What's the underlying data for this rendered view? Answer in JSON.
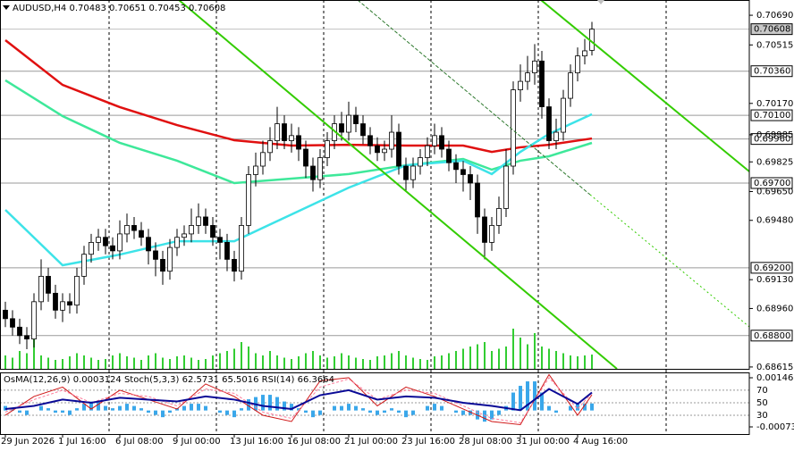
{
  "chart_data": [
    {
      "type": "candlestick",
      "title": "AUDUSD,H4 0.70483 0.70651 0.70453 0.70608",
      "categories": [
        "29 Jun 2026",
        null,
        null,
        null,
        null,
        null,
        null,
        null,
        "1 Jul 16:00",
        null,
        null,
        null,
        null,
        null,
        null,
        null,
        "6 Jul 08:00",
        null,
        null,
        null,
        null,
        null,
        null,
        null,
        "9 Jul 00:00",
        null,
        null,
        null,
        null,
        null,
        null,
        null,
        "13 Jul 16:00",
        null,
        null,
        null,
        null,
        null,
        null,
        null,
        "16 Jul 08:00",
        null,
        null,
        null,
        null,
        null,
        null,
        null,
        "21 Jul 00:00",
        null,
        null,
        null,
        null,
        null,
        null,
        null,
        "23 Jul 16:00",
        null,
        null,
        null,
        null,
        null,
        null,
        null,
        "28 Jul 08:00",
        null,
        null,
        null,
        null,
        null,
        null,
        null,
        "31 Jul 00:00",
        null,
        null,
        null,
        null,
        null,
        null,
        null,
        "4 Aug 16:00",
        null,
        null
      ],
      "open": [
        0.6895,
        0.689,
        0.6885,
        0.688,
        0.6878,
        0.69,
        0.6915,
        0.6905,
        0.6895,
        0.69,
        0.6898,
        0.6915,
        0.6928,
        0.6935,
        0.6938,
        0.6933,
        0.693,
        0.694,
        0.6945,
        0.6942,
        0.6938,
        0.693,
        0.6925,
        0.6918,
        0.6932,
        0.6938,
        0.694,
        0.6945,
        0.695,
        0.6945,
        0.6938,
        0.6935,
        0.6925,
        0.6918,
        0.6945,
        0.6975,
        0.698,
        0.6988,
        0.6995,
        0.7005,
        0.6995,
        0.6998,
        0.699,
        0.698,
        0.6972,
        0.6985,
        0.6995,
        0.7005,
        0.7,
        0.701,
        0.7005,
        0.6998,
        0.6992,
        0.6988,
        0.699,
        0.7,
        0.698,
        0.6972,
        0.698,
        0.6985,
        0.6992,
        0.6998,
        0.699,
        0.6982,
        0.6978,
        0.6975,
        0.697,
        0.695,
        0.6935,
        0.6945,
        0.6955,
        0.698,
        0.7025,
        0.703,
        0.7035,
        0.7042,
        0.7015,
        0.6995,
        0.7,
        0.702,
        0.7035,
        0.7045,
        0.70483
      ],
      "high": [
        0.69,
        0.6895,
        0.689,
        0.6885,
        0.6905,
        0.6925,
        0.692,
        0.691,
        0.6905,
        0.6905,
        0.692,
        0.6933,
        0.694,
        0.6943,
        0.6943,
        0.6938,
        0.6948,
        0.6952,
        0.695,
        0.6947,
        0.6943,
        0.6935,
        0.693,
        0.6937,
        0.6943,
        0.6945,
        0.6955,
        0.6958,
        0.6955,
        0.695,
        0.6943,
        0.694,
        0.693,
        0.695,
        0.698,
        0.6988,
        0.6995,
        0.7003,
        0.7015,
        0.701,
        0.7005,
        0.7003,
        0.6995,
        0.6985,
        0.699,
        0.7,
        0.701,
        0.7012,
        0.7018,
        0.7015,
        0.701,
        0.7003,
        0.6997,
        0.6995,
        0.701,
        0.7005,
        0.6985,
        0.6985,
        0.699,
        0.6997,
        0.7005,
        0.7003,
        0.6995,
        0.6987,
        0.6983,
        0.698,
        0.6975,
        0.6955,
        0.695,
        0.6962,
        0.699,
        0.703,
        0.704,
        0.7045,
        0.7052,
        0.7048,
        0.702,
        0.7008,
        0.7025,
        0.704,
        0.705,
        0.7055,
        0.70651
      ],
      "low": [
        0.6885,
        0.688,
        0.6875,
        0.6872,
        0.6873,
        0.6895,
        0.69,
        0.689,
        0.6888,
        0.6893,
        0.6893,
        0.691,
        0.6923,
        0.693,
        0.6928,
        0.6925,
        0.6925,
        0.6935,
        0.6937,
        0.6933,
        0.6922,
        0.6915,
        0.691,
        0.6913,
        0.6927,
        0.6933,
        0.6935,
        0.694,
        0.694,
        0.6933,
        0.6925,
        0.6918,
        0.6912,
        0.6913,
        0.694,
        0.6968,
        0.6975,
        0.6983,
        0.699,
        0.699,
        0.6988,
        0.6983,
        0.6973,
        0.6965,
        0.6967,
        0.698,
        0.699,
        0.6995,
        0.6995,
        0.7,
        0.6993,
        0.6987,
        0.6983,
        0.6983,
        0.6985,
        0.6975,
        0.6965,
        0.6967,
        0.6975,
        0.698,
        0.6987,
        0.6985,
        0.6977,
        0.697,
        0.6965,
        0.696,
        0.694,
        0.6925,
        0.693,
        0.694,
        0.695,
        0.6975,
        0.7018,
        0.7025,
        0.7028,
        0.7008,
        0.699,
        0.699,
        0.6995,
        0.7015,
        0.703,
        0.704,
        0.70453
      ],
      "close": [
        0.689,
        0.6885,
        0.688,
        0.6878,
        0.69,
        0.6915,
        0.6905,
        0.6895,
        0.69,
        0.6898,
        0.6915,
        0.6928,
        0.6935,
        0.6938,
        0.6933,
        0.693,
        0.694,
        0.6945,
        0.6942,
        0.6938,
        0.693,
        0.6925,
        0.6918,
        0.6932,
        0.6938,
        0.694,
        0.6945,
        0.695,
        0.6945,
        0.6938,
        0.6935,
        0.6925,
        0.6918,
        0.6945,
        0.6975,
        0.698,
        0.6988,
        0.6995,
        0.7005,
        0.6995,
        0.6998,
        0.699,
        0.698,
        0.6972,
        0.6985,
        0.6995,
        0.7005,
        0.7,
        0.701,
        0.7005,
        0.6998,
        0.6992,
        0.6988,
        0.699,
        0.7,
        0.698,
        0.6972,
        0.698,
        0.6985,
        0.6992,
        0.6998,
        0.699,
        0.6982,
        0.6978,
        0.6975,
        0.697,
        0.695,
        0.6935,
        0.6945,
        0.6955,
        0.698,
        0.7025,
        0.703,
        0.7035,
        0.7042,
        0.7015,
        0.6995,
        0.7,
        0.702,
        0.7035,
        0.7045,
        0.7048,
        0.70608
      ],
      "volume": [
        30,
        25,
        40,
        35,
        85,
        30,
        25,
        20,
        22,
        28,
        35,
        30,
        25,
        20,
        22,
        30,
        35,
        28,
        25,
        20,
        30,
        35,
        25,
        22,
        28,
        30,
        25,
        20,
        22,
        30,
        35,
        40,
        45,
        60,
        50,
        35,
        30,
        40,
        30,
        25,
        22,
        28,
        35,
        40,
        30,
        25,
        28,
        35,
        30,
        25,
        22,
        20,
        28,
        30,
        35,
        40,
        30,
        25,
        22,
        20,
        28,
        30,
        35,
        40,
        45,
        50,
        55,
        60,
        40,
        45,
        50,
        90,
        70,
        55,
        80,
        50,
        45,
        40,
        35,
        30,
        28,
        30,
        32
      ],
      "volume_color": "#32cd32",
      "up_color": "#ffffff",
      "down_color": "#000000",
      "ylim": [
        0.68604,
        0.7078
      ],
      "yticks": [
        {
          "value": 0.7069,
          "label": "0.70690"
        },
        {
          "value": 0.70515,
          "label": "0.70515"
        },
        {
          "value": 0.7017,
          "label": "0.70170"
        },
        {
          "value": 0.69985,
          "label": "0.69985"
        },
        {
          "value": 0.69825,
          "label": "0.69825"
        },
        {
          "value": 0.6965,
          "label": "0.69650"
        },
        {
          "value": 0.6948,
          "label": "0.69480"
        },
        {
          "value": 0.6913,
          "label": "0.69130"
        },
        {
          "value": 0.6896,
          "label": "0.68960"
        },
        {
          "value": 0.68615,
          "label": "0.68615"
        }
      ],
      "levels": [
        {
          "value": 0.7036,
          "label": "0.70360"
        },
        {
          "value": 0.701,
          "label": "0.70100"
        },
        {
          "value": 0.6996,
          "label": "0.69960"
        },
        {
          "value": 0.697,
          "label": "0.69700"
        },
        {
          "value": 0.692,
          "label": "0.69200"
        },
        {
          "value": 0.688,
          "label": "0.68800"
        }
      ],
      "level_color": "#9a9a9a",
      "last_price": {
        "value": 0.70608,
        "label": "0.70608"
      },
      "overlays": [
        {
          "color": "#e01010",
          "x": [
            0,
            8,
            16,
            24,
            32,
            40,
            48,
            56,
            64,
            68,
            72,
            76,
            82
          ],
          "values": [
            0.70543,
            0.70279,
            0.70148,
            0.70042,
            0.69953,
            0.69921,
            0.69926,
            0.69921,
            0.69921,
            0.69884,
            0.69911,
            0.69926,
            0.69963
          ]
        },
        {
          "color": "#3ee89a",
          "x": [
            0,
            8,
            16,
            24,
            32,
            40,
            48,
            56,
            64,
            68,
            72,
            76,
            82
          ],
          "values": [
            0.70306,
            0.70095,
            0.69937,
            0.69832,
            0.697,
            0.69726,
            0.69753,
            0.69805,
            0.69842,
            0.69779,
            0.69832,
            0.69858,
            0.69937
          ]
        },
        {
          "color": "#3de3e8",
          "x": [
            0,
            8,
            16,
            24,
            32,
            40,
            48,
            56,
            64,
            68,
            72,
            76,
            82
          ],
          "values": [
            0.69542,
            0.69215,
            0.69278,
            0.69357,
            0.69357,
            0.69515,
            0.69673,
            0.69805,
            0.69832,
            0.69753,
            0.69884,
            0.6999,
            0.70106
          ]
        }
      ]
    },
    {
      "type": "oscillator",
      "title": "OsMA(12,26,9) 0.0003124 Stoch(5,3,3) 62.5731 65.5016 RSI(14) 66.3664",
      "values": [
        0.0002,
        0.0001,
        -0.0001,
        -0.0002,
        0,
        0.0002,
        0.0001,
        -0.0001,
        -0.0001,
        -0.0002,
        0.0001,
        0.0003,
        0.0004,
        0.0004,
        0.0002,
        0.0001,
        0.0002,
        0.0003,
        0.0002,
        0.0001,
        -0.0001,
        -0.0002,
        -0.0003,
        -0.0001,
        0.0001,
        0.0002,
        0.0003,
        0.0003,
        0.0002,
        0,
        -0.0001,
        -0.0002,
        -0.0003,
        0.0001,
        0.0005,
        0.0006,
        0.0007,
        0.0007,
        0.0006,
        0.0004,
        0.0003,
        0.0001,
        -0.0001,
        -0.0003,
        -0.0002,
        0,
        0.0002,
        0.0002,
        0.0003,
        0.0002,
        0.0001,
        -0.0001,
        -0.0002,
        -0.0001,
        0.0001,
        -0.0001,
        -0.0003,
        -0.0002,
        0,
        0.0002,
        0.0003,
        0.0002,
        0,
        -0.0001,
        -0.0002,
        -0.0002,
        -0.0004,
        -0.0005,
        -0.0004,
        -0.0002,
        0.0002,
        0.0008,
        0.0011,
        0.0013,
        0.0013,
        0.0008,
        0.0002,
        -0.0001,
        0,
        0.0002,
        0.0003,
        0.0003,
        0.0003124
      ],
      "color": "#3aa7ea",
      "ylim": [
        -0.001052,
        0.00166
      ],
      "yticks": [
        {
          "value": 0.0014605,
          "label": "0.0014605"
        },
        {
          "value": -0.0007329,
          "label": "-0.0007329"
        }
      ],
      "y2lim": [
        0,
        97
      ],
      "y2ticks": [
        70,
        50,
        30
      ],
      "lines": [
        {
          "color": "#d01818",
          "axis": "y2",
          "x": [
            0,
            4,
            8,
            12,
            16,
            20,
            24,
            28,
            32,
            36,
            40,
            44,
            48,
            52,
            56,
            60,
            64,
            68,
            72,
            76,
            80,
            82
          ],
          "values": [
            30,
            60,
            75,
            40,
            70,
            55,
            40,
            80,
            60,
            30,
            20,
            85,
            90,
            45,
            75,
            60,
            40,
            20,
            15,
            95,
            30,
            62.5731
          ]
        },
        {
          "color": "#ff7a9a",
          "axis": "y2",
          "x": [
            0,
            4,
            8,
            12,
            16,
            20,
            24,
            28,
            32,
            36,
            40,
            44,
            48,
            52,
            56,
            60,
            64,
            68,
            72,
            76,
            80,
            82
          ],
          "values": [
            35,
            55,
            70,
            50,
            65,
            60,
            45,
            72,
            65,
            35,
            25,
            75,
            88,
            55,
            70,
            65,
            45,
            25,
            18,
            90,
            40,
            65.5016
          ]
        },
        {
          "color": "#0a0a96",
          "axis": "y2",
          "x": [
            0,
            4,
            8,
            12,
            16,
            20,
            24,
            28,
            32,
            36,
            40,
            44,
            48,
            52,
            56,
            60,
            64,
            68,
            72,
            76,
            80,
            82
          ],
          "values": [
            40,
            45,
            55,
            50,
            58,
            55,
            52,
            60,
            55,
            45,
            40,
            62,
            70,
            55,
            60,
            58,
            50,
            45,
            38,
            72,
            48,
            66.3664
          ]
        }
      ]
    }
  ]
}
